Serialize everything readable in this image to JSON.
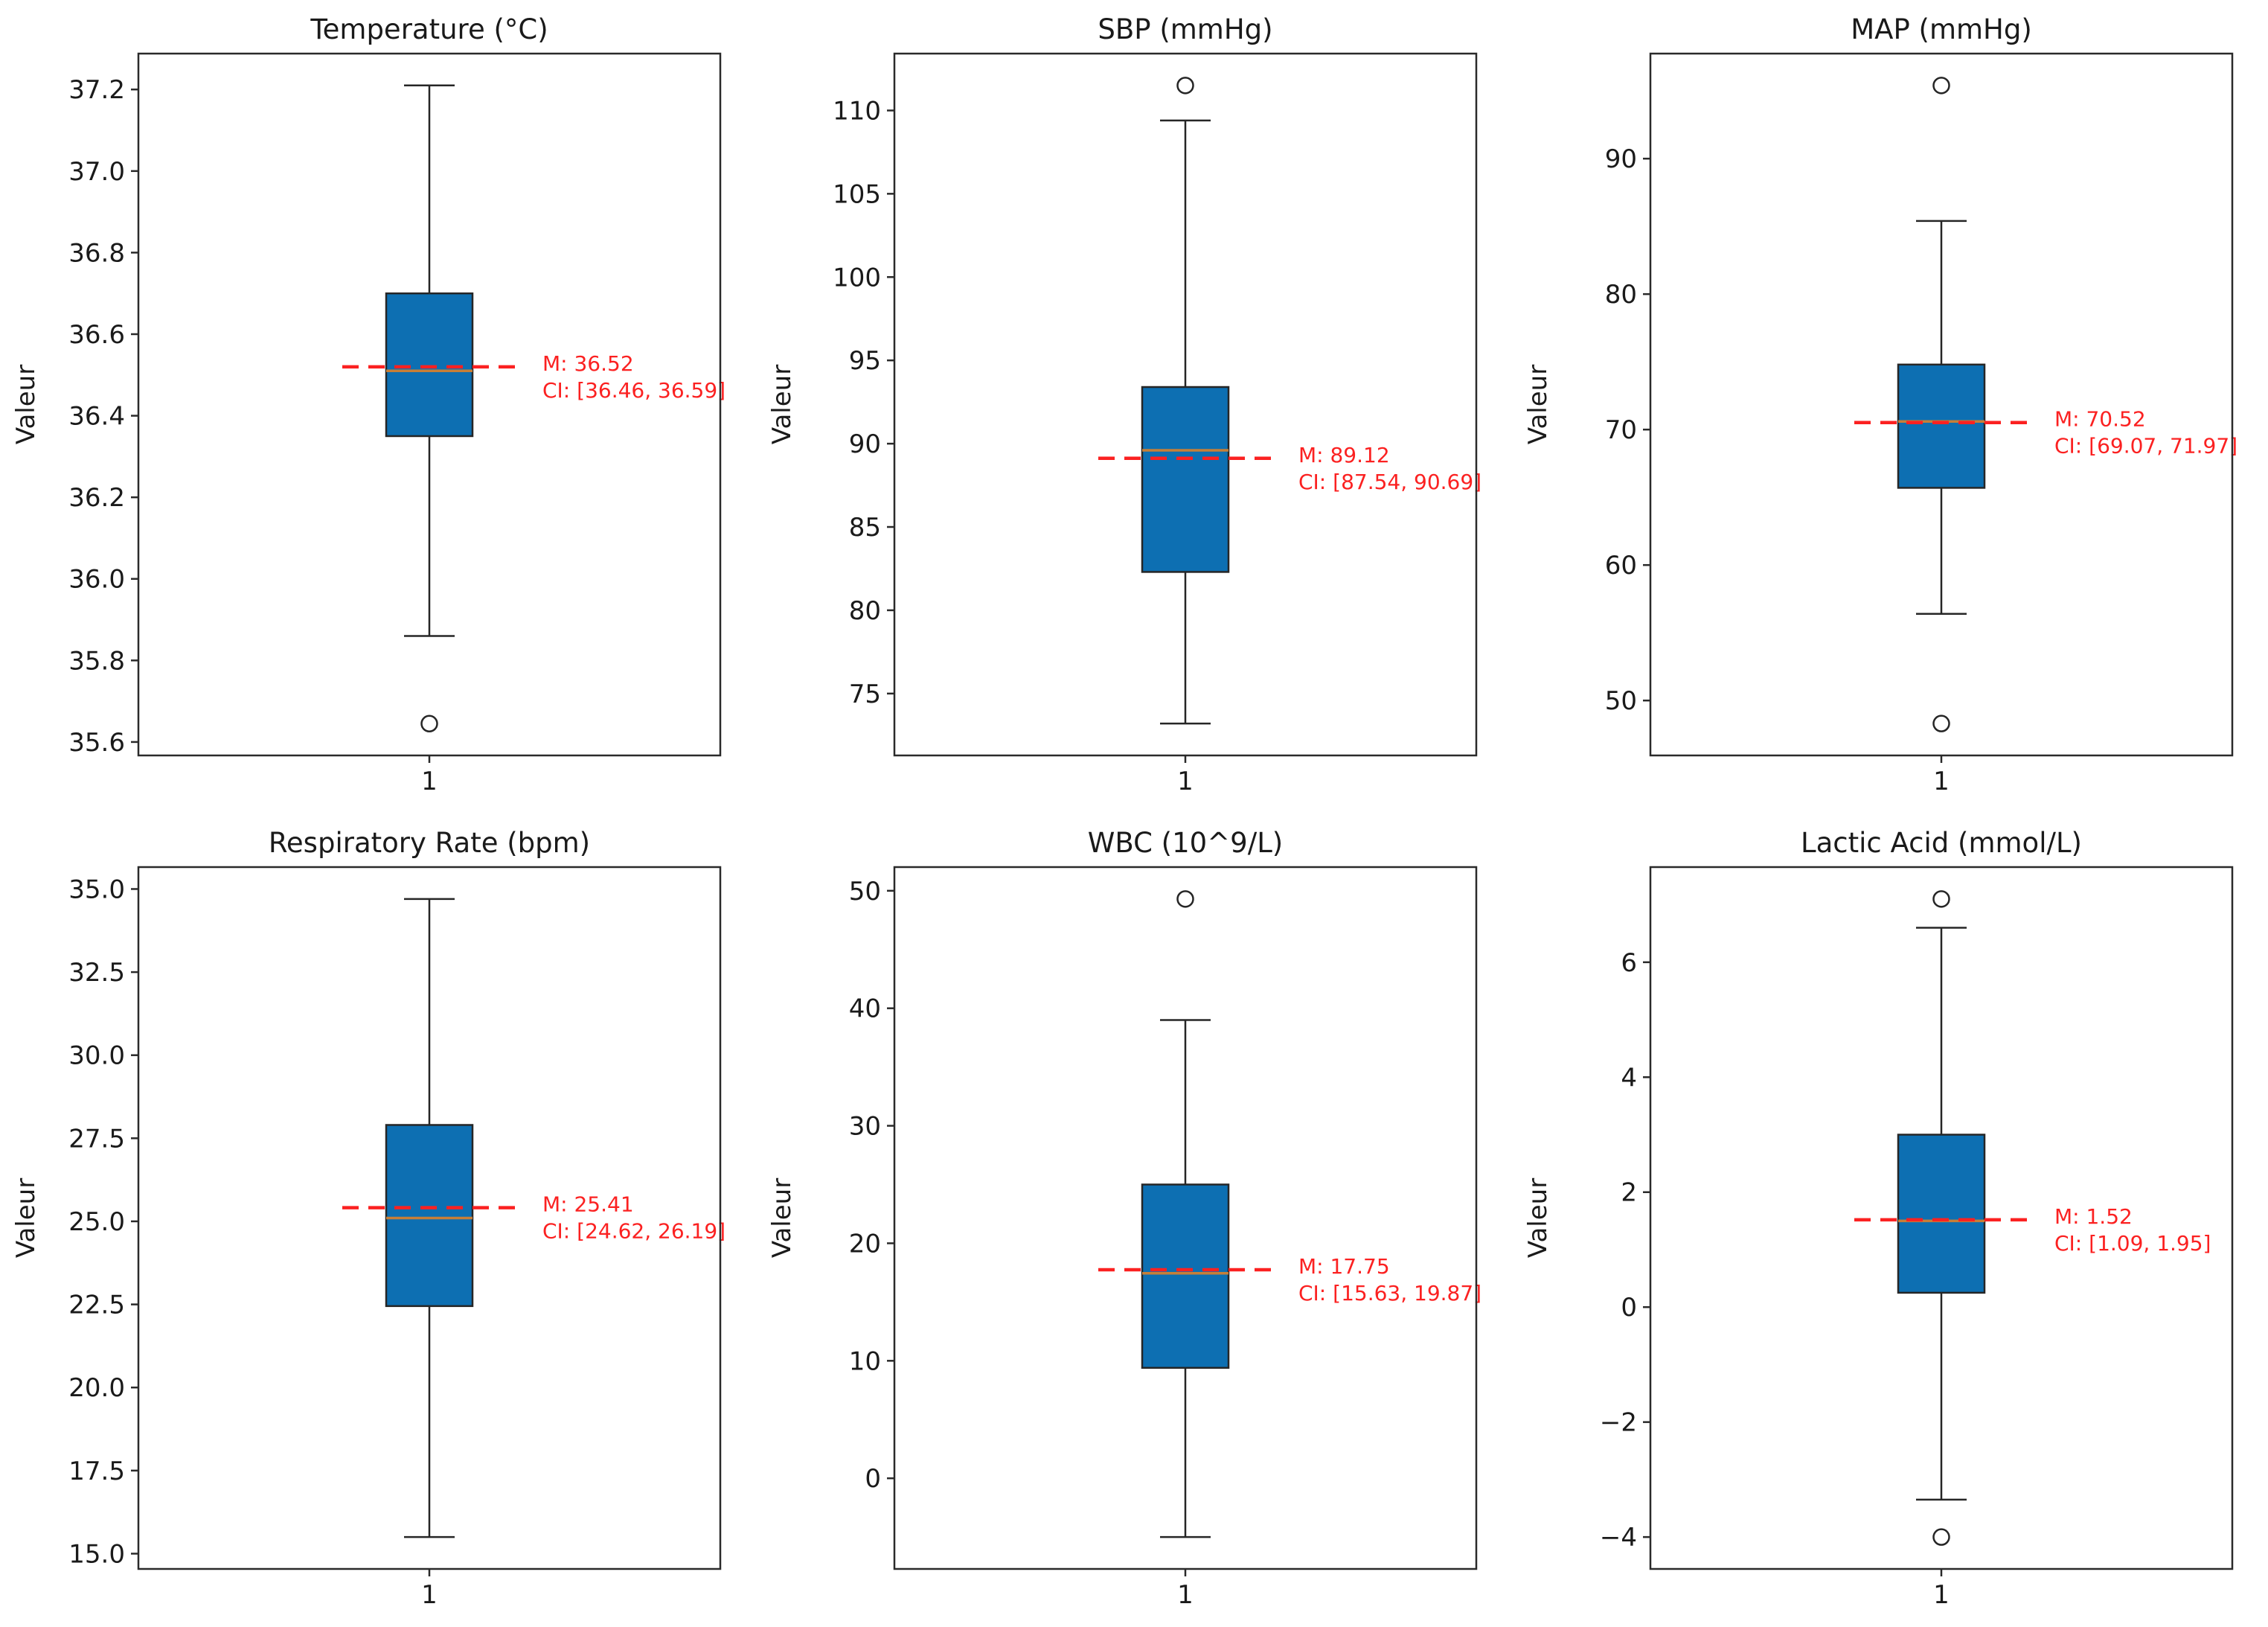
{
  "figure": {
    "ylabel": "Valeur",
    "xtick_label": "1",
    "background": "#ffffff",
    "colors": {
      "box_fill": "#0d6fb2",
      "box_edge": "#262626",
      "whisker": "#262626",
      "cap": "#262626",
      "median": "#c67f38",
      "mean_line": "#fb2121",
      "annotation": "#fb2121",
      "axis": "#2a2a2a",
      "text": "#1a1a1a"
    }
  },
  "chart_data": [
    {
      "type": "boxplot",
      "title": "Temperature (°C)",
      "ylabel": "Valeur",
      "xtick": "1",
      "legend": "none",
      "grid": false,
      "ylim": [
        35.567,
        37.288
      ],
      "ytick_values": [
        35.6,
        35.8,
        36.0,
        36.2,
        36.4,
        36.6,
        36.8,
        37.0,
        37.2
      ],
      "ytick_labels": [
        "35.6",
        "35.8",
        "36.0",
        "36.2",
        "36.4",
        "36.6",
        "36.8",
        "37.0",
        "37.2"
      ],
      "stats": {
        "whisker_low": 35.86,
        "q1": 36.35,
        "median": 36.51,
        "q3": 36.7,
        "whisker_high": 37.21,
        "outliers": [
          35.645
        ]
      },
      "mean": 36.52,
      "ci": [
        36.46,
        36.59
      ],
      "annotation": [
        "M: 36.52",
        "CI: [36.46, 36.59]"
      ]
    },
    {
      "type": "boxplot",
      "title": "SBP (mmHg)",
      "ylabel": "Valeur",
      "xtick": "1",
      "legend": "none",
      "grid": false,
      "ylim": [
        71.285,
        113.415
      ],
      "ytick_values": [
        75,
        80,
        85,
        90,
        95,
        100,
        105,
        110
      ],
      "ytick_labels": [
        "75",
        "80",
        "85",
        "90",
        "95",
        "100",
        "105",
        "110"
      ],
      "stats": {
        "whisker_low": 73.2,
        "q1": 82.3,
        "median": 89.6,
        "q3": 93.4,
        "whisker_high": 109.4,
        "outliers": [
          111.5
        ]
      },
      "mean": 89.12,
      "ci": [
        87.54,
        90.69
      ],
      "annotation": [
        "M: 89.12",
        "CI: [87.54, 90.69]"
      ]
    },
    {
      "type": "boxplot",
      "title": "MAP (mmHg)",
      "ylabel": "Valeur",
      "xtick": "1",
      "legend": "none",
      "grid": false,
      "ylim": [
        45.945,
        97.755
      ],
      "ytick_values": [
        50,
        60,
        70,
        80,
        90
      ],
      "ytick_labels": [
        "50",
        "60",
        "70",
        "80",
        "90"
      ],
      "stats": {
        "whisker_low": 56.4,
        "q1": 65.7,
        "median": 70.6,
        "q3": 74.8,
        "whisker_high": 85.4,
        "outliers": [
          95.4,
          48.3
        ]
      },
      "mean": 70.52,
      "ci": [
        69.07,
        71.97
      ],
      "annotation": [
        "M: 70.52",
        "CI: [69.07, 71.97]"
      ]
    },
    {
      "type": "boxplot",
      "title": "Respiratory Rate (bpm)",
      "ylabel": "Valeur",
      "xtick": "1",
      "legend": "none",
      "grid": false,
      "ylim": [
        14.54,
        35.66
      ],
      "ytick_values": [
        15.0,
        17.5,
        20.0,
        22.5,
        25.0,
        27.5,
        30.0,
        32.5,
        35.0
      ],
      "ytick_labels": [
        "15.0",
        "17.5",
        "20.0",
        "22.5",
        "25.0",
        "27.5",
        "30.0",
        "32.5",
        "35.0"
      ],
      "stats": {
        "whisker_low": 15.5,
        "q1": 22.45,
        "median": 25.1,
        "q3": 27.9,
        "whisker_high": 34.7,
        "outliers": []
      },
      "mean": 25.41,
      "ci": [
        24.62,
        26.19
      ],
      "annotation": [
        "M: 25.41",
        "CI: [24.62, 26.19]"
      ]
    },
    {
      "type": "boxplot",
      "title": "WBC (10^9/L)",
      "ylabel": "Valeur",
      "xtick": "1",
      "legend": "none",
      "grid": false,
      "ylim": [
        -7.715,
        52.015
      ],
      "ytick_values": [
        0,
        10,
        20,
        30,
        40,
        50
      ],
      "ytick_labels": [
        "0",
        "10",
        "20",
        "30",
        "40",
        "50"
      ],
      "stats": {
        "whisker_low": -5.0,
        "q1": 9.4,
        "median": 17.45,
        "q3": 25.0,
        "whisker_high": 39.0,
        "outliers": [
          49.3
        ]
      },
      "mean": 17.75,
      "ci": [
        15.63,
        19.87
      ],
      "annotation": [
        "M: 17.75",
        "CI: [15.63, 19.87]"
      ]
    },
    {
      "type": "boxplot",
      "title": "Lactic Acid (mmol/L)",
      "ylabel": "Valeur",
      "xtick": "1",
      "legend": "none",
      "grid": false,
      "ylim": [
        -4.555,
        7.655
      ],
      "ytick_values": [
        -4,
        -2,
        0,
        2,
        4,
        6
      ],
      "ytick_labels": [
        "−4",
        "−2",
        "0",
        "2",
        "4",
        "6"
      ],
      "stats": {
        "whisker_low": -3.35,
        "q1": 0.25,
        "median": 1.5,
        "q3": 3.0,
        "whisker_high": 6.6,
        "outliers": [
          7.1,
          -4.0
        ]
      },
      "mean": 1.52,
      "ci": [
        1.09,
        1.95
      ],
      "annotation": [
        "M: 1.52",
        "CI: [1.09, 1.95]"
      ]
    }
  ]
}
